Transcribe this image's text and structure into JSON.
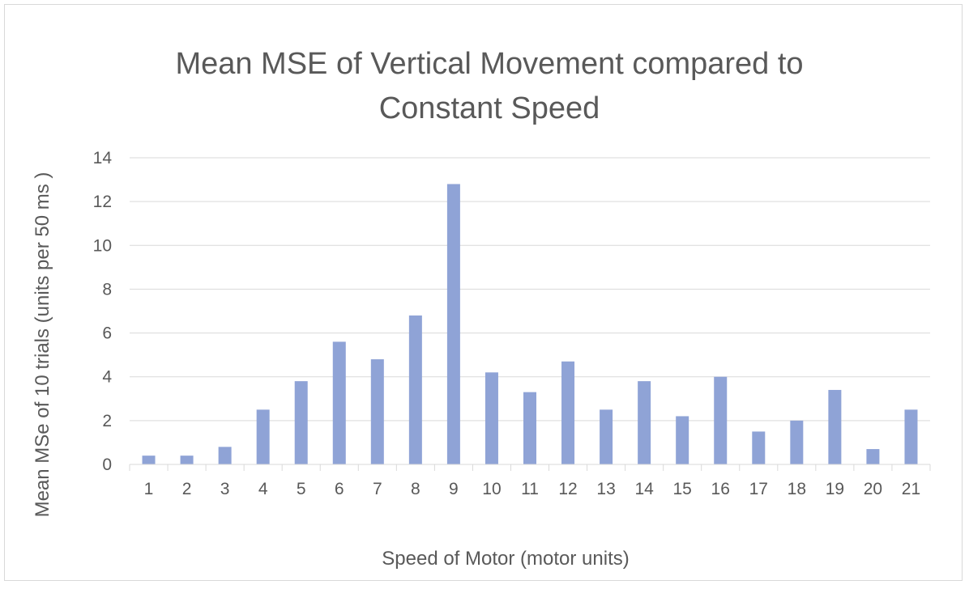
{
  "chart_data": {
    "type": "bar",
    "title_lines": [
      "Mean MSE of Vertical Movement compared to",
      "Constant Speed"
    ],
    "xlabel": "Speed of Motor (motor units)",
    "ylabel": "Mean MSe of 10 trials (units per 50 ms )",
    "categories": [
      "1",
      "2",
      "3",
      "4",
      "5",
      "6",
      "7",
      "8",
      "9",
      "10",
      "11",
      "12",
      "13",
      "14",
      "15",
      "16",
      "17",
      "18",
      "19",
      "20",
      "21"
    ],
    "values": [
      0.4,
      0.4,
      0.8,
      2.5,
      3.8,
      5.6,
      4.8,
      6.8,
      12.8,
      4.2,
      3.3,
      4.7,
      2.5,
      3.8,
      2.2,
      4.0,
      1.5,
      2.0,
      3.4,
      0.7,
      2.5
    ],
    "ylim": [
      0,
      14
    ],
    "yticks": [
      0,
      2,
      4,
      6,
      8,
      10,
      12,
      14
    ],
    "grid": true,
    "bar_color": "#8fa3d6",
    "grid_color": "#d9d9d9",
    "text_color": "#595959"
  }
}
